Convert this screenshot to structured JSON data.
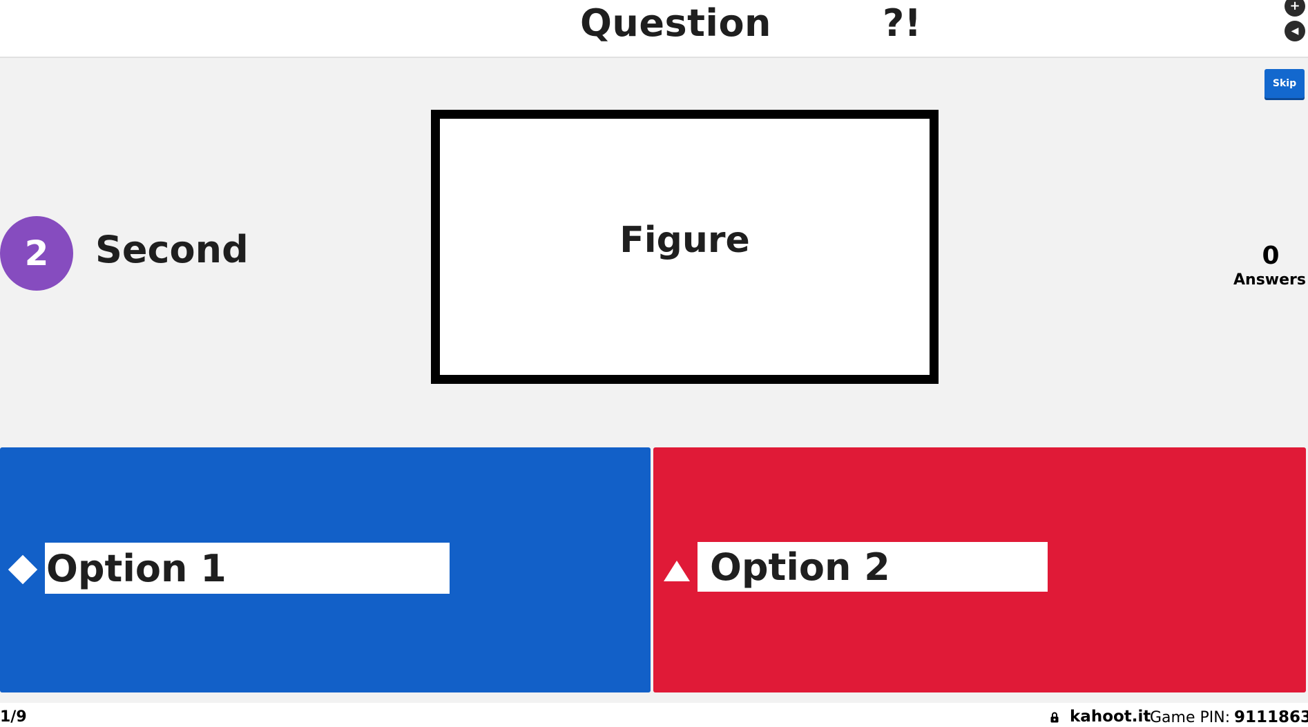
{
  "header": {
    "title": "Question",
    "mark": "?!",
    "plus_icon": "plus-icon",
    "volume_icon": "volume-icon"
  },
  "controls": {
    "skip_label": "Skip"
  },
  "timer": {
    "value": "2",
    "label": "Second"
  },
  "media": {
    "text": "Figure"
  },
  "answers": {
    "count": "0",
    "label": "Answers"
  },
  "options": [
    {
      "label": "Option 1",
      "shape": "diamond-icon",
      "color": "#1260c8"
    },
    {
      "label": "Option 2",
      "shape": "triangle-icon",
      "color": "#e01a37"
    }
  ],
  "footer": {
    "progress": "1/9",
    "site": "kahoot.it",
    "pin_label": "Game PIN:",
    "pin_value": "9111863",
    "lock_icon": "lock-icon"
  },
  "colors": {
    "timer": "#864cbf",
    "skip": "#1368ce"
  }
}
